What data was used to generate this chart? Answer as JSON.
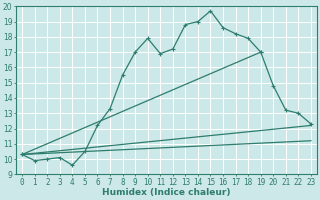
{
  "xlabel": "Humidex (Indice chaleur)",
  "bg_color": "#cce8e8",
  "line_color": "#2e7d6e",
  "grid_color": "#ffffff",
  "xlim": [
    -0.5,
    23.5
  ],
  "ylim": [
    9,
    20
  ],
  "xticks": [
    0,
    1,
    2,
    3,
    4,
    5,
    6,
    7,
    8,
    9,
    10,
    11,
    12,
    13,
    14,
    15,
    16,
    17,
    18,
    19,
    20,
    21,
    22,
    23
  ],
  "yticks": [
    9,
    10,
    11,
    12,
    13,
    14,
    15,
    16,
    17,
    18,
    19,
    20
  ],
  "series1_x": [
    0,
    1,
    2,
    3,
    4,
    5,
    6,
    7,
    8,
    9,
    10,
    11,
    12,
    13,
    14,
    15,
    16,
    17,
    18,
    19
  ],
  "series1_y": [
    10.3,
    9.9,
    10.0,
    10.1,
    9.6,
    10.5,
    12.2,
    13.3,
    15.5,
    17.0,
    17.9,
    16.9,
    17.2,
    18.8,
    19.0,
    19.7,
    18.6,
    18.2,
    17.9,
    17.0
  ],
  "series2_x": [
    0,
    19,
    20,
    21,
    22,
    23
  ],
  "series2_y": [
    10.3,
    17.0,
    14.8,
    13.2,
    13.0,
    12.3
  ],
  "series3_x": [
    0,
    23
  ],
  "series3_y": [
    10.3,
    12.2
  ],
  "series4_x": [
    0,
    23
  ],
  "series4_y": [
    10.3,
    11.2
  ],
  "marker": "+",
  "markersize": 3.5,
  "linewidth": 0.9
}
